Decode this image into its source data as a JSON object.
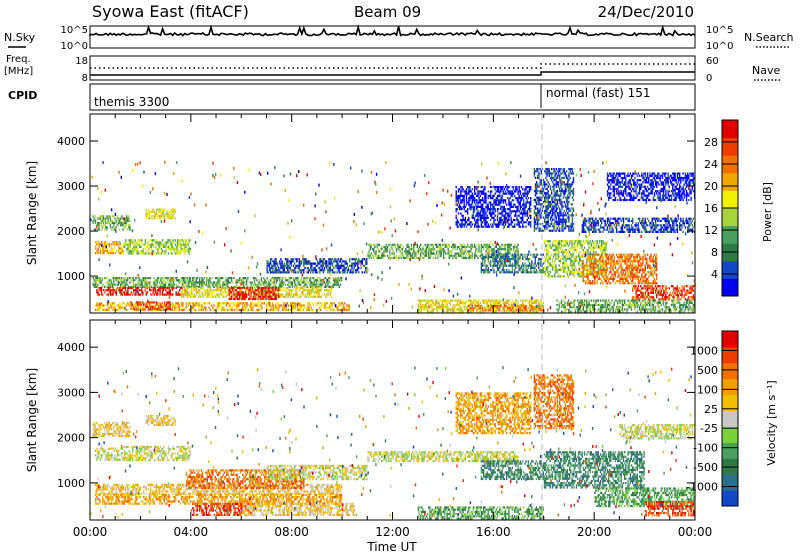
{
  "header": {
    "station": "Syowa East (fitACF)",
    "beam": "Beam 09",
    "date": "24/Dec/2010"
  },
  "labels": {
    "nsky": "N.Sky",
    "nsky_hi": "10^5",
    "nsky_lo": "10^0",
    "nsearch": "N.Search",
    "nsearch_hi": "10^5",
    "nsearch_lo": "10^0",
    "freq_line1": "Freq.",
    "freq_line2": "[MHz]",
    "freq_hi": "18",
    "freq_lo": "8",
    "nave": "Nave",
    "nave_hi": "60",
    "nave_lo": "0",
    "cpid": "CPID",
    "mode1": "themis 3300",
    "mode2": "normal (fast) 151",
    "yaxis_title": "Slant Range [km]",
    "xaxis_title": "Time UT",
    "power_title": "Power [dB]",
    "velocity_title": "Velocity  [m s⁻¹]"
  },
  "chart_data": [
    {
      "type": "heatmap",
      "name": "Power",
      "xlabel": "Time UT",
      "ylabel": "Slant Range [km]",
      "x_ticks": [
        "00:00",
        "04:00",
        "08:00",
        "12:00",
        "16:00",
        "20:00",
        "00:00"
      ],
      "y_ticks": [
        "1000",
        "2000",
        "3000",
        "4000"
      ],
      "ylim": [
        180,
        4600
      ],
      "colorbar": {
        "title": "Power [dB]",
        "ticks": [
          "4",
          "8",
          "12",
          "16",
          "20",
          "24",
          "28"
        ],
        "colors": [
          "#0000f0",
          "#1446c8",
          "#2e7a46",
          "#4aa060",
          "#a8d43a",
          "#f0f000",
          "#f0a800",
          "#f07000",
          "#f03c00",
          "#e00000"
        ]
      },
      "regions": [
        {
          "t": [
            0.2,
            1.3
          ],
          "r": [
            1520,
            1780
          ],
          "level": 6
        },
        {
          "t": [
            1.3,
            4.0
          ],
          "r": [
            1520,
            1820
          ],
          "level": 4
        },
        {
          "t": [
            0.1,
            1.6
          ],
          "r": [
            2050,
            2350
          ],
          "level": 3
        },
        {
          "t": [
            2.2,
            3.4
          ],
          "r": [
            2300,
            2500
          ],
          "level": 5
        },
        {
          "t": [
            0.1,
            10.0
          ],
          "r": [
            780,
            980
          ],
          "level": 3
        },
        {
          "t": [
            0.2,
            3.8
          ],
          "r": [
            580,
            760
          ],
          "level": 9
        },
        {
          "t": [
            3.6,
            9.6
          ],
          "r": [
            560,
            760
          ],
          "level": 5
        },
        {
          "t": [
            0.2,
            10.3
          ],
          "r": [
            260,
            420
          ],
          "level": 6
        },
        {
          "t": [
            1.6,
            3.2
          ],
          "r": [
            260,
            440
          ],
          "level": 8
        },
        {
          "t": [
            5.5,
            7.5
          ],
          "r": [
            480,
            760
          ],
          "level": 9
        },
        {
          "t": [
            7.0,
            11.0
          ],
          "r": [
            1100,
            1400
          ],
          "level": 1
        },
        {
          "t": [
            11.0,
            17.0
          ],
          "r": [
            1380,
            1720
          ],
          "level": 3
        },
        {
          "t": [
            14.5,
            17.5
          ],
          "r": [
            2100,
            3000
          ],
          "level": 0
        },
        {
          "t": [
            15.5,
            18.0
          ],
          "r": [
            1100,
            1500
          ],
          "level": 2
        },
        {
          "t": [
            13.0,
            18.0
          ],
          "r": [
            220,
            480
          ],
          "level": 5
        },
        {
          "t": [
            15.0,
            18.0
          ],
          "r": [
            220,
            360
          ],
          "level": 7
        },
        {
          "t": [
            17.6,
            19.2
          ],
          "r": [
            2000,
            3400
          ],
          "level": 1
        },
        {
          "t": [
            18.0,
            20.5
          ],
          "r": [
            1000,
            1800
          ],
          "level": 4
        },
        {
          "t": [
            19.5,
            22.5
          ],
          "r": [
            850,
            1500
          ],
          "level": 7
        },
        {
          "t": [
            21.5,
            24.0
          ],
          "r": [
            500,
            800
          ],
          "level": 8
        },
        {
          "t": [
            18.5,
            24.0
          ],
          "r": [
            200,
            480
          ],
          "level": 3
        },
        {
          "t": [
            19.5,
            24.0
          ],
          "r": [
            2000,
            2300
          ],
          "level": 1
        },
        {
          "t": [
            20.5,
            24.0
          ],
          "r": [
            2700,
            3300
          ],
          "level": 0
        }
      ]
    },
    {
      "type": "heatmap",
      "name": "Velocity",
      "xlabel": "Time UT",
      "ylabel": "Slant Range [km]",
      "x_ticks": [
        "00:00",
        "04:00",
        "08:00",
        "12:00",
        "16:00",
        "20:00",
        "00:00"
      ],
      "y_ticks": [
        "1000",
        "2000",
        "3000",
        "4000"
      ],
      "ylim": [
        180,
        4600
      ],
      "colorbar": {
        "title": "Velocity  [m s⁻¹]",
        "ticks": [
          "1000",
          "500",
          "100",
          "25",
          "-25",
          "-100",
          "-500",
          "-1000"
        ],
        "colors": [
          "#1446c8",
          "#2e6e8c",
          "#2e7a46",
          "#4aa060",
          "#7cd03c",
          "#c8c8c8",
          "#f0c000",
          "#f0a000",
          "#f07000",
          "#f03c00",
          "#e00000"
        ]
      },
      "regions": [
        {
          "t": [
            0.2,
            1.3
          ],
          "r": [
            1520,
            1780
          ],
          "level": 5
        },
        {
          "t": [
            1.3,
            4.0
          ],
          "r": [
            1520,
            1820
          ],
          "level": 5
        },
        {
          "t": [
            0.1,
            1.6
          ],
          "r": [
            2050,
            2350
          ],
          "level": 6
        },
        {
          "t": [
            2.2,
            3.4
          ],
          "r": [
            2300,
            2500
          ],
          "level": 6
        },
        {
          "t": [
            0.2,
            10.0
          ],
          "r": [
            780,
            980
          ],
          "level": 6
        },
        {
          "t": [
            0.2,
            10.0
          ],
          "r": [
            560,
            760
          ],
          "level": 7
        },
        {
          "t": [
            3.8,
            8.5
          ],
          "r": [
            900,
            1300
          ],
          "level": 8
        },
        {
          "t": [
            4.0,
            6.5
          ],
          "r": [
            300,
            560
          ],
          "level": 9
        },
        {
          "t": [
            6.0,
            10.5
          ],
          "r": [
            300,
            560
          ],
          "level": 6
        },
        {
          "t": [
            7.0,
            11.0
          ],
          "r": [
            1100,
            1400
          ],
          "level": 5
        },
        {
          "t": [
            11.0,
            17.0
          ],
          "r": [
            1500,
            1700
          ],
          "level": 5
        },
        {
          "t": [
            14.5,
            17.5
          ],
          "r": [
            2100,
            3000
          ],
          "level": 7
        },
        {
          "t": [
            15.5,
            18.0
          ],
          "r": [
            1100,
            1500
          ],
          "level": 2
        },
        {
          "t": [
            13.0,
            18.0
          ],
          "r": [
            220,
            480
          ],
          "level": 3
        },
        {
          "t": [
            17.6,
            19.2
          ],
          "r": [
            2200,
            3400
          ],
          "level": 8
        },
        {
          "t": [
            18.0,
            22.0
          ],
          "r": [
            900,
            1700
          ],
          "level": 2
        },
        {
          "t": [
            20.0,
            24.0
          ],
          "r": [
            500,
            900
          ],
          "level": 3
        },
        {
          "t": [
            22.0,
            24.0
          ],
          "r": [
            300,
            600
          ],
          "level": 9
        },
        {
          "t": [
            21.0,
            24.0
          ],
          "r": [
            2000,
            2300
          ],
          "level": 5
        }
      ]
    }
  ]
}
